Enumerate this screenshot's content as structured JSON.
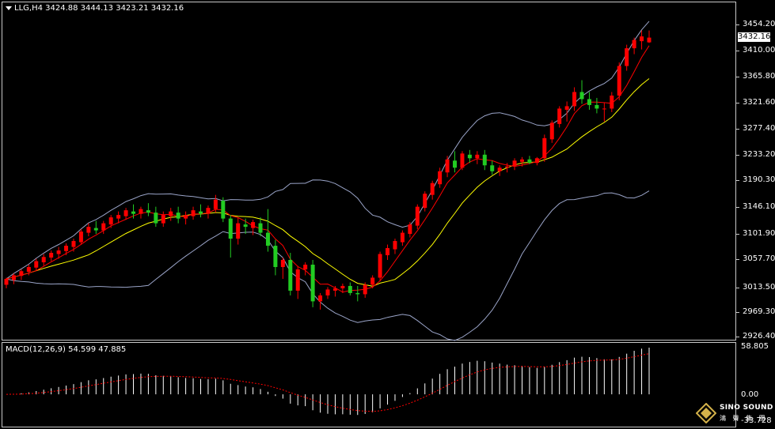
{
  "chart": {
    "symbol_label": "LLG,H4",
    "ohlc_label": "3424.88 3444.13 3423.21 3432.16",
    "current_price": "3432.16",
    "price_axis": [
      "3454.20",
      "3410.00",
      "3365.80",
      "3321.60",
      "3277.40",
      "3233.20",
      "3190.30",
      "3146.10",
      "3101.90",
      "3057.70",
      "3013.50",
      "2969.30",
      "2926.40"
    ],
    "macd_label": "MACD(12,26,9) 54.599 47.885",
    "macd_axis": [
      "58.805",
      "0.00",
      "-33.728"
    ],
    "colors": {
      "bull": "#ff0000",
      "bear": "#22cc22",
      "ma_fast": "#ff0000",
      "ma_slow": "#ffff00",
      "bands": "#9aa4c8",
      "macd_hist": "#ffffff",
      "macd_signal": "#ff0000"
    }
  },
  "chart_data": {
    "type": "candlestick",
    "timeframe": "H4",
    "ylim": [
      2926.4,
      3454.2
    ],
    "candles": [
      [
        3014,
        3026,
        3008,
        3024
      ],
      [
        3022,
        3033,
        3015,
        3030
      ],
      [
        3029,
        3040,
        3022,
        3037
      ],
      [
        3036,
        3048,
        3030,
        3044
      ],
      [
        3043,
        3058,
        3038,
        3054
      ],
      [
        3052,
        3066,
        3046,
        3061
      ],
      [
        3060,
        3072,
        3054,
        3068
      ],
      [
        3066,
        3078,
        3058,
        3072
      ],
      [
        3071,
        3084,
        3064,
        3080
      ],
      [
        3078,
        3092,
        3070,
        3088
      ],
      [
        3086,
        3108,
        3082,
        3104
      ],
      [
        3102,
        3118,
        3096,
        3112
      ],
      [
        3110,
        3122,
        3100,
        3106
      ],
      [
        3106,
        3122,
        3100,
        3118
      ],
      [
        3116,
        3132,
        3110,
        3128
      ],
      [
        3126,
        3138,
        3118,
        3132
      ],
      [
        3130,
        3144,
        3124,
        3140
      ],
      [
        3138,
        3150,
        3126,
        3134
      ],
      [
        3134,
        3146,
        3126,
        3142
      ],
      [
        3140,
        3152,
        3130,
        3136
      ],
      [
        3136,
        3146,
        3112,
        3118
      ],
      [
        3118,
        3138,
        3112,
        3132
      ],
      [
        3130,
        3144,
        3122,
        3138
      ],
      [
        3136,
        3146,
        3118,
        3126
      ],
      [
        3126,
        3138,
        3116,
        3132
      ],
      [
        3130,
        3146,
        3124,
        3140
      ],
      [
        3138,
        3150,
        3128,
        3134
      ],
      [
        3134,
        3148,
        3126,
        3144
      ],
      [
        3142,
        3166,
        3136,
        3158
      ],
      [
        3156,
        3162,
        3120,
        3126
      ],
      [
        3126,
        3132,
        3060,
        3092
      ],
      [
        3092,
        3128,
        3082,
        3118
      ],
      [
        3116,
        3126,
        3100,
        3112
      ],
      [
        3110,
        3124,
        3098,
        3120
      ],
      [
        3118,
        3128,
        3096,
        3102
      ],
      [
        3102,
        3142,
        3070,
        3080
      ],
      [
        3080,
        3090,
        3030,
        3044
      ],
      [
        3044,
        3060,
        3024,
        3056
      ],
      [
        3056,
        3068,
        2996,
        3004
      ],
      [
        3004,
        3046,
        2990,
        3040
      ],
      [
        3040,
        3052,
        3030,
        3048
      ],
      [
        3048,
        3056,
        2976,
        2986
      ],
      [
        2986,
        3000,
        2972,
        2996
      ],
      [
        2996,
        3010,
        2990,
        3006
      ],
      [
        3004,
        3012,
        2994,
        3008
      ],
      [
        3008,
        3016,
        3000,
        3012
      ],
      [
        3012,
        3018,
        2996,
        3000
      ],
      [
        3000,
        3012,
        2986,
        2998
      ],
      [
        2998,
        3018,
        2992,
        3014
      ],
      [
        3014,
        3030,
        3008,
        3026
      ],
      [
        3026,
        3070,
        3020,
        3066
      ],
      [
        3064,
        3082,
        3056,
        3076
      ],
      [
        3074,
        3092,
        3066,
        3088
      ],
      [
        3086,
        3106,
        3080,
        3102
      ],
      [
        3100,
        3120,
        3094,
        3116
      ],
      [
        3114,
        3150,
        3108,
        3146
      ],
      [
        3144,
        3172,
        3138,
        3168
      ],
      [
        3166,
        3190,
        3158,
        3186
      ],
      [
        3184,
        3212,
        3178,
        3206
      ],
      [
        3204,
        3232,
        3196,
        3226
      ],
      [
        3224,
        3240,
        3204,
        3212
      ],
      [
        3212,
        3240,
        3208,
        3236
      ],
      [
        3234,
        3242,
        3220,
        3228
      ],
      [
        3228,
        3240,
        3218,
        3234
      ],
      [
        3234,
        3242,
        3208,
        3216
      ],
      [
        3216,
        3224,
        3200,
        3206
      ],
      [
        3206,
        3216,
        3198,
        3212
      ],
      [
        3212,
        3220,
        3204,
        3214
      ],
      [
        3214,
        3228,
        3208,
        3224
      ],
      [
        3222,
        3230,
        3214,
        3226
      ],
      [
        3226,
        3232,
        3218,
        3220
      ],
      [
        3220,
        3230,
        3216,
        3228
      ],
      [
        3228,
        3268,
        3222,
        3262
      ],
      [
        3260,
        3292,
        3254,
        3288
      ],
      [
        3286,
        3316,
        3280,
        3312
      ],
      [
        3310,
        3324,
        3290,
        3316
      ],
      [
        3316,
        3348,
        3308,
        3340
      ],
      [
        3340,
        3360,
        3320,
        3328
      ],
      [
        3328,
        3340,
        3310,
        3318
      ],
      [
        3318,
        3330,
        3304,
        3312
      ],
      [
        3312,
        3322,
        3290,
        3312
      ],
      [
        3312,
        3340,
        3306,
        3334
      ],
      [
        3334,
        3390,
        3326,
        3384
      ],
      [
        3384,
        3420,
        3376,
        3414
      ],
      [
        3414,
        3432,
        3404,
        3428
      ],
      [
        3426,
        3444,
        3412,
        3434
      ],
      [
        3424,
        3444,
        3423,
        3432
      ]
    ],
    "macd_range": [
      -33.728,
      58.805
    ]
  }
}
